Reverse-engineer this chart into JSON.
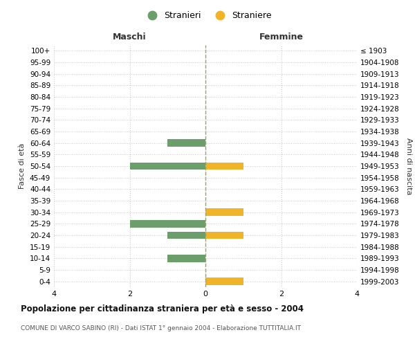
{
  "age_groups": [
    "0-4",
    "5-9",
    "10-14",
    "15-19",
    "20-24",
    "25-29",
    "30-34",
    "35-39",
    "40-44",
    "45-49",
    "50-54",
    "55-59",
    "60-64",
    "65-69",
    "70-74",
    "75-79",
    "80-84",
    "85-89",
    "90-94",
    "95-99",
    "100+"
  ],
  "birth_years": [
    "1999-2003",
    "1994-1998",
    "1989-1993",
    "1984-1988",
    "1979-1983",
    "1974-1978",
    "1969-1973",
    "1964-1968",
    "1959-1963",
    "1954-1958",
    "1949-1953",
    "1944-1948",
    "1939-1943",
    "1934-1938",
    "1929-1933",
    "1924-1928",
    "1919-1923",
    "1914-1918",
    "1909-1913",
    "1904-1908",
    "≤ 1903"
  ],
  "males": [
    0,
    0,
    1,
    0,
    1,
    2,
    0,
    0,
    0,
    0,
    2,
    0,
    1,
    0,
    0,
    0,
    0,
    0,
    0,
    0,
    0
  ],
  "females": [
    1,
    0,
    0,
    0,
    1,
    0,
    1,
    0,
    0,
    0,
    1,
    0,
    0,
    0,
    0,
    0,
    0,
    0,
    0,
    0,
    0
  ],
  "male_color": "#6b9e6b",
  "female_color": "#f0b429",
  "male_label": "Stranieri",
  "female_label": "Straniere",
  "title": "Popolazione per cittadinanza straniera per età e sesso - 2004",
  "subtitle": "COMUNE DI VARCO SABINO (RI) - Dati ISTAT 1° gennaio 2004 - Elaborazione TUTTITALIA.IT",
  "xlabel_left": "Maschi",
  "xlabel_right": "Femmine",
  "ylabel_left": "Fasce di età",
  "ylabel_right": "Anni di nascita",
  "xlim": [
    -4,
    4
  ],
  "background_color": "#ffffff",
  "grid_color": "#cccccc"
}
